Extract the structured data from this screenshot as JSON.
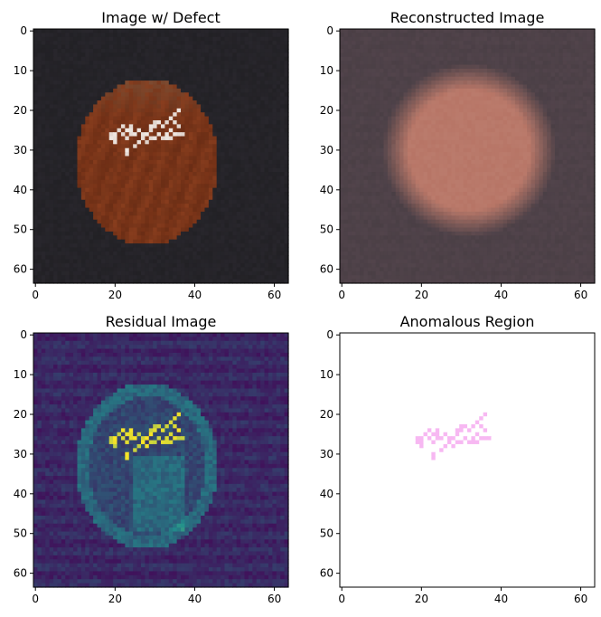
{
  "figure": {
    "panels": [
      {
        "id": "defect",
        "title": "Image w/ Defect",
        "kind": "photo-defect"
      },
      {
        "id": "reconstructed",
        "title": "Reconstructed Image",
        "kind": "photo-reconstructed"
      },
      {
        "id": "residual",
        "title": "Residual Image",
        "kind": "heatmap-residual"
      },
      {
        "id": "anomaly",
        "title": "Anomalous Region",
        "kind": "mask-anomaly"
      }
    ],
    "x_ticks": [
      0,
      20,
      40,
      60
    ],
    "y_ticks": [
      0,
      10,
      20,
      30,
      40,
      50,
      60
    ],
    "image_extent": [
      -0.5,
      63.5
    ],
    "colors": {
      "background_dark": "#222125",
      "nut_base": "#7a3418",
      "defect_white": "#efe8e2",
      "reconstructed_bg": "#4a3f45",
      "reconstructed_nut": "#b77566",
      "viridis_low": "#440154",
      "viridis_mid": "#21908d",
      "viridis_high": "#fde725",
      "mask_pink": "#f7b8f2"
    }
  }
}
